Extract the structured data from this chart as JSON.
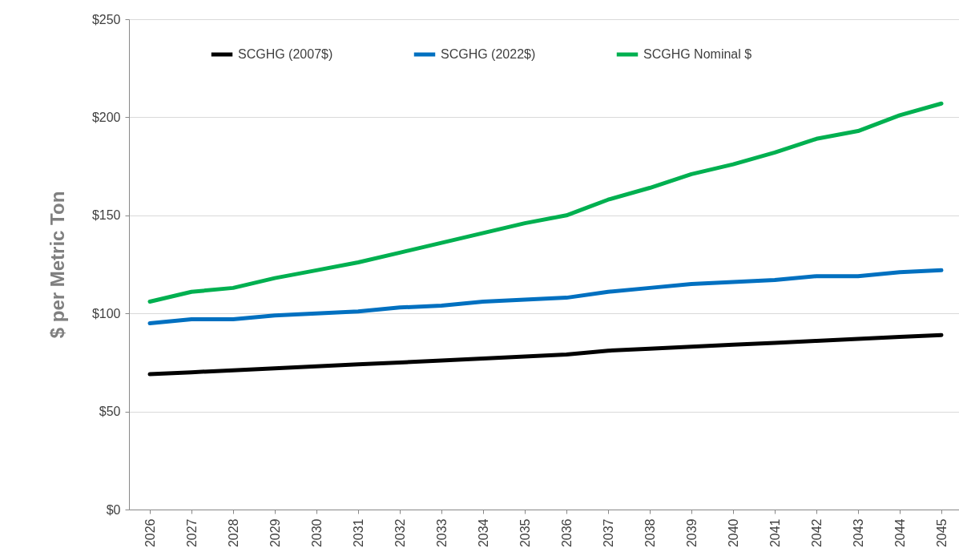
{
  "chart_data": {
    "type": "line",
    "ylabel": "$ per Metric Ton",
    "categories": [
      "2026",
      "2027",
      "2028",
      "2029",
      "2030",
      "2031",
      "2032",
      "2033",
      "2034",
      "2035",
      "2036",
      "2037",
      "2038",
      "2039",
      "2040",
      "2041",
      "2042",
      "2043",
      "2044",
      "2045"
    ],
    "series": [
      {
        "name": "SCGHG (2007$)",
        "color": "#000000",
        "values": [
          69,
          70,
          71,
          72,
          73,
          74,
          75,
          76,
          77,
          78,
          79,
          81,
          82,
          83,
          84,
          85,
          86,
          87,
          88,
          89
        ]
      },
      {
        "name": "SCGHG (2022$)",
        "color": "#0070c0",
        "values": [
          95,
          97,
          97,
          99,
          100,
          101,
          103,
          104,
          106,
          107,
          108,
          111,
          113,
          115,
          116,
          117,
          119,
          119,
          121,
          122
        ]
      },
      {
        "name": "SCGHG Nominal $",
        "color": "#00b050",
        "values": [
          106,
          111,
          113,
          118,
          122,
          126,
          131,
          136,
          141,
          146,
          150,
          158,
          164,
          171,
          176,
          182,
          189,
          193,
          201,
          207
        ]
      }
    ],
    "ylim": [
      0,
      250
    ],
    "yticks": [
      {
        "value": 0,
        "label": "$0"
      },
      {
        "value": 50,
        "label": "$50"
      },
      {
        "value": 100,
        "label": "$100"
      },
      {
        "value": 150,
        "label": "$150"
      },
      {
        "value": 200,
        "label": "$200"
      },
      {
        "value": 250,
        "label": "$250"
      }
    ],
    "grid": "y",
    "legend": "top",
    "marker": "none",
    "line_style": "solid"
  }
}
